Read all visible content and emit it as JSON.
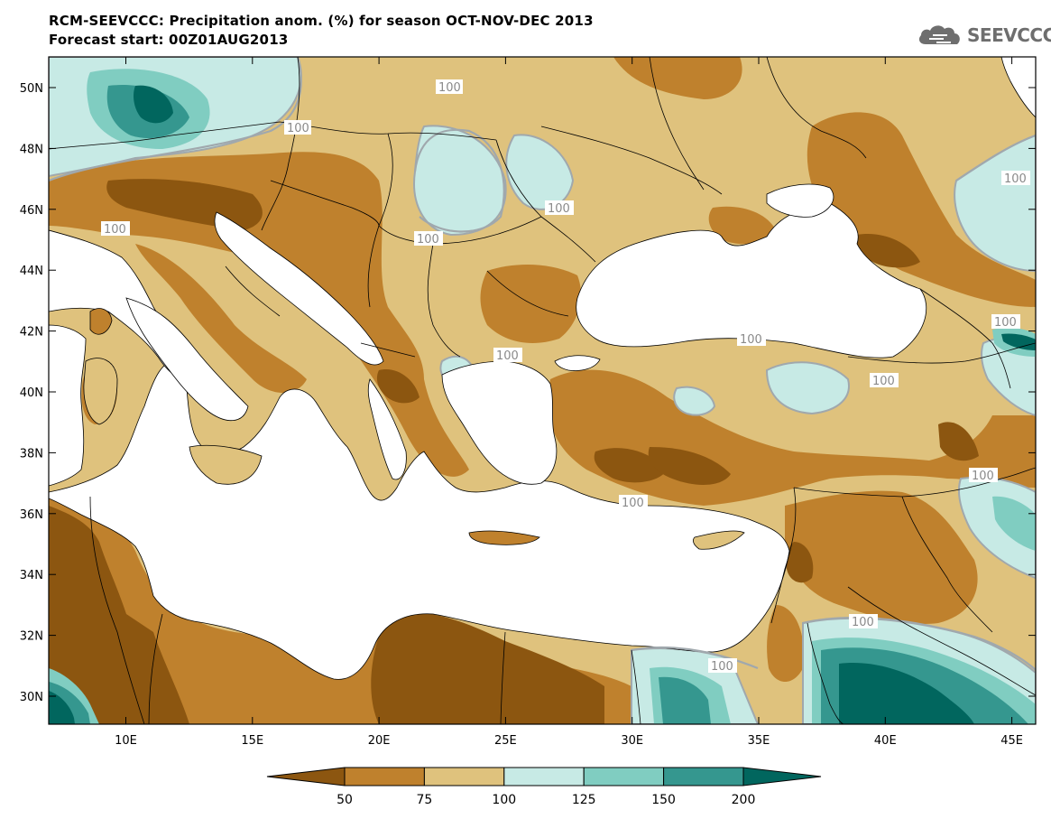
{
  "header": {
    "title_line1": "RCM-SEEVCCC: Precipitation anom. (%) for season OCT-NOV-DEC 2013",
    "title_line2": "Forecast start: 00Z01AUG2013"
  },
  "logo": {
    "text": "SEEVCCC",
    "icon": "cloud-icon"
  },
  "map": {
    "lat_ticks": [
      "50N",
      "48N",
      "46N",
      "44N",
      "42N",
      "40N",
      "38N",
      "36N",
      "34N",
      "32N",
      "30N"
    ],
    "lon_ticks": [
      "10E",
      "15E",
      "20E",
      "25E",
      "30E",
      "35E",
      "40E",
      "45E"
    ],
    "contour_label": "100",
    "colors": {
      "c_lt50": "#8c5610",
      "c_50_75": "#bf812d",
      "c_75_100": "#dfc27d",
      "c_100_125": "#c7eae5",
      "c_125_150": "#80cdc1",
      "c_150_200": "#35978f",
      "c_gt200": "#01665e",
      "land_base": "#dfc27d",
      "sea": "#ffffff",
      "contour_100": "#a0a8ad",
      "border": "#000000"
    }
  },
  "colorbar": {
    "labels": [
      "50",
      "75",
      "100",
      "125",
      "150",
      "200"
    ],
    "colors": [
      "#8c5610",
      "#bf812d",
      "#dfc27d",
      "#c7eae5",
      "#80cdc1",
      "#35978f",
      "#01665e"
    ]
  }
}
